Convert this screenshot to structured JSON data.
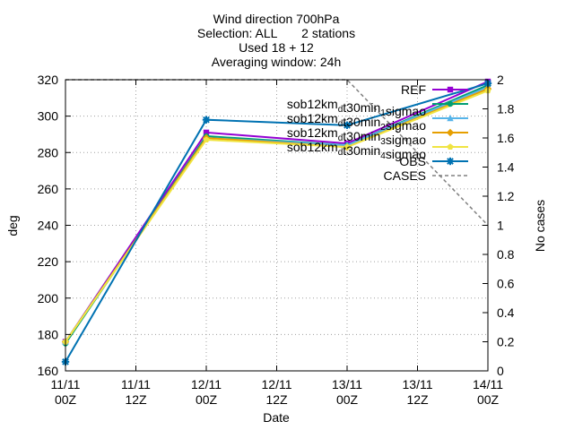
{
  "chart_data": {
    "type": "line",
    "title_lines": [
      "Wind direction 700hPa",
      "Selection: ALL       2 stations",
      "Used 18 + 12",
      "Averaging window: 24h"
    ],
    "xlabel": "Date",
    "ylabel": "deg",
    "y2label": "No cases",
    "x_ticks": [
      {
        "x": 0,
        "line1": "11/11",
        "line2": "00Z"
      },
      {
        "x": 12,
        "line1": "11/11",
        "line2": "12Z"
      },
      {
        "x": 24,
        "line1": "12/11",
        "line2": "00Z"
      },
      {
        "x": 36,
        "line1": "12/11",
        "line2": "12Z"
      },
      {
        "x": 48,
        "line1": "13/11",
        "line2": "00Z"
      },
      {
        "x": 60,
        "line1": "13/11",
        "line2": "12Z"
      },
      {
        "x": 72,
        "line1": "14/11",
        "line2": "00Z"
      }
    ],
    "xlim": [
      0,
      72
    ],
    "ylim": [
      160,
      320
    ],
    "y_ticks": [
      "160",
      "180",
      "200",
      "220",
      "240",
      "260",
      "280",
      "300",
      "320"
    ],
    "y2lim": [
      0,
      2
    ],
    "y2_ticks": [
      "0",
      "0.2",
      "0.4",
      "0.6",
      "0.8",
      "1",
      "1.2",
      "1.4",
      "1.6",
      "1.8",
      "2"
    ],
    "grid": true,
    "legend_position": "top-right",
    "series": [
      {
        "name": "REF",
        "legend_base": "REF",
        "legend_sub": "",
        "legend_tail": "",
        "color": "#9400d3",
        "marker": "square",
        "x": [
          0,
          24,
          48,
          72
        ],
        "values": [
          176,
          291,
          285,
          319
        ]
      },
      {
        "name": "sob12km_d t30min_1 sigmao",
        "legend_base": "sob12km",
        "legend_sub": "d",
        "legend_mid": "t30min",
        "legend_sub2": "1",
        "legend_tail": "sigmao",
        "color": "#009e73",
        "marker": "circle",
        "x": [
          0,
          24,
          48,
          72
        ],
        "values": [
          175,
          289,
          284,
          317
        ]
      },
      {
        "name": "sob12km_d t30min_2 sigmao",
        "legend_base": "sob12km",
        "legend_sub": "d",
        "legend_mid": "t30min",
        "legend_sub2": "2",
        "legend_tail": "sigmao",
        "color": "#56b4e9",
        "marker": "triangle",
        "x": [
          0,
          24,
          48,
          72
        ],
        "values": [
          176,
          288,
          284,
          316
        ]
      },
      {
        "name": "sob12km_d t30min_3 sigmao",
        "legend_base": "sob12km",
        "legend_sub": "d",
        "legend_mid": "t30min",
        "legend_sub2": "3",
        "legend_tail": "sigmao",
        "color": "#e69f00",
        "marker": "diamond",
        "x": [
          0,
          24,
          48,
          72
        ],
        "values": [
          176,
          288,
          283,
          315
        ]
      },
      {
        "name": "sob12km_d t30min_4 sigmao",
        "legend_base": "sob12km",
        "legend_sub": "d",
        "legend_mid": "t30min",
        "legend_sub2": "4",
        "legend_tail": "sigmao",
        "color": "#f0e442",
        "marker": "pentagon",
        "x": [
          0,
          24,
          48,
          72
        ],
        "values": [
          176,
          287,
          283,
          314
        ]
      },
      {
        "name": "OBS",
        "legend_base": "OBS",
        "legend_sub": "",
        "legend_tail": "",
        "color": "#0072b2",
        "marker": "star",
        "x": [
          0,
          24,
          48,
          72
        ],
        "values": [
          165,
          298,
          295,
          318
        ]
      }
    ],
    "cases": {
      "name": "CASES",
      "color": "#808080",
      "axis": "y2",
      "x": [
        0,
        24,
        48,
        72
      ],
      "values": [
        2,
        2,
        2,
        1
      ]
    }
  }
}
